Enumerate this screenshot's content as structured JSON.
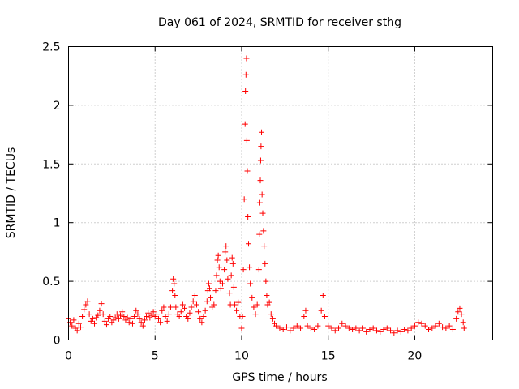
{
  "chart_data": {
    "type": "scatter",
    "title": "Day 061 of 2024, SRMTID for receiver sthg",
    "xlabel": "GPS time / hours",
    "ylabel": "SRMTID / TECUs",
    "xlim": [
      0,
      24.5
    ],
    "ylim": [
      0,
      2.5
    ],
    "grid": true,
    "marker": "+",
    "marker_color": "#ff0000",
    "x_ticks": [
      0,
      5,
      10,
      15,
      20
    ],
    "x_tick_labels": [
      "0",
      "5",
      "10",
      "15",
      "20"
    ],
    "y_ticks": [
      0,
      0.5,
      1,
      1.5,
      2,
      2.5
    ],
    "y_tick_labels": [
      "0",
      "0.5",
      "1",
      "1.5",
      "2",
      "2.5"
    ],
    "series": [
      {
        "name": "SRMTID",
        "points": [
          [
            0.0,
            0.18
          ],
          [
            0.1,
            0.15
          ],
          [
            0.2,
            0.12
          ],
          [
            0.3,
            0.17
          ],
          [
            0.4,
            0.1
          ],
          [
            0.5,
            0.08
          ],
          [
            0.6,
            0.14
          ],
          [
            0.7,
            0.11
          ],
          [
            0.8,
            0.2
          ],
          [
            0.9,
            0.26
          ],
          [
            1.0,
            0.3
          ],
          [
            1.1,
            0.33
          ],
          [
            1.2,
            0.22
          ],
          [
            1.3,
            0.16
          ],
          [
            1.4,
            0.18
          ],
          [
            1.5,
            0.14
          ],
          [
            1.6,
            0.19
          ],
          [
            1.7,
            0.21
          ],
          [
            1.8,
            0.25
          ],
          [
            1.9,
            0.31
          ],
          [
            2.0,
            0.22
          ],
          [
            2.1,
            0.16
          ],
          [
            2.2,
            0.13
          ],
          [
            2.3,
            0.18
          ],
          [
            2.4,
            0.2
          ],
          [
            2.5,
            0.15
          ],
          [
            2.6,
            0.17
          ],
          [
            2.7,
            0.19
          ],
          [
            2.8,
            0.22
          ],
          [
            2.9,
            0.18
          ],
          [
            3.0,
            0.21
          ],
          [
            3.1,
            0.24
          ],
          [
            3.2,
            0.2
          ],
          [
            3.3,
            0.17
          ],
          [
            3.4,
            0.19
          ],
          [
            3.5,
            0.15
          ],
          [
            3.6,
            0.18
          ],
          [
            3.7,
            0.14
          ],
          [
            3.8,
            0.2
          ],
          [
            3.9,
            0.25
          ],
          [
            4.0,
            0.22
          ],
          [
            4.1,
            0.18
          ],
          [
            4.2,
            0.15
          ],
          [
            4.3,
            0.12
          ],
          [
            4.4,
            0.17
          ],
          [
            4.5,
            0.2
          ],
          [
            4.6,
            0.23
          ],
          [
            4.7,
            0.19
          ],
          [
            4.8,
            0.21
          ],
          [
            4.9,
            0.24
          ],
          [
            5.0,
            0.2
          ],
          [
            5.1,
            0.22
          ],
          [
            5.2,
            0.18
          ],
          [
            5.3,
            0.15
          ],
          [
            5.4,
            0.25
          ],
          [
            5.5,
            0.28
          ],
          [
            5.6,
            0.2
          ],
          [
            5.7,
            0.16
          ],
          [
            5.8,
            0.22
          ],
          [
            5.9,
            0.28
          ],
          [
            6.0,
            0.42
          ],
          [
            6.05,
            0.52
          ],
          [
            6.1,
            0.48
          ],
          [
            6.15,
            0.38
          ],
          [
            6.2,
            0.28
          ],
          [
            6.3,
            0.22
          ],
          [
            6.4,
            0.2
          ],
          [
            6.5,
            0.24
          ],
          [
            6.6,
            0.3
          ],
          [
            6.7,
            0.27
          ],
          [
            6.8,
            0.2
          ],
          [
            6.9,
            0.18
          ],
          [
            7.0,
            0.23
          ],
          [
            7.1,
            0.28
          ],
          [
            7.2,
            0.33
          ],
          [
            7.3,
            0.38
          ],
          [
            7.4,
            0.3
          ],
          [
            7.5,
            0.24
          ],
          [
            7.6,
            0.18
          ],
          [
            7.7,
            0.15
          ],
          [
            7.8,
            0.2
          ],
          [
            7.9,
            0.25
          ],
          [
            8.0,
            0.33
          ],
          [
            8.05,
            0.42
          ],
          [
            8.1,
            0.48
          ],
          [
            8.15,
            0.44
          ],
          [
            8.2,
            0.36
          ],
          [
            8.3,
            0.28
          ],
          [
            8.4,
            0.3
          ],
          [
            8.5,
            0.42
          ],
          [
            8.55,
            0.55
          ],
          [
            8.6,
            0.68
          ],
          [
            8.65,
            0.72
          ],
          [
            8.7,
            0.62
          ],
          [
            8.75,
            0.5
          ],
          [
            8.8,
            0.44
          ],
          [
            8.9,
            0.48
          ],
          [
            9.0,
            0.6
          ],
          [
            9.05,
            0.75
          ],
          [
            9.1,
            0.8
          ],
          [
            9.15,
            0.68
          ],
          [
            9.2,
            0.52
          ],
          [
            9.3,
            0.4
          ],
          [
            9.35,
            0.3
          ],
          [
            9.4,
            0.55
          ],
          [
            9.45,
            0.7
          ],
          [
            9.5,
            0.65
          ],
          [
            9.55,
            0.45
          ],
          [
            9.6,
            0.3
          ],
          [
            9.7,
            0.25
          ],
          [
            9.8,
            0.32
          ],
          [
            9.9,
            0.2
          ],
          [
            10.0,
            0.1
          ],
          [
            10.05,
            0.2
          ],
          [
            10.1,
            0.6
          ],
          [
            10.15,
            1.2
          ],
          [
            10.2,
            1.84
          ],
          [
            10.22,
            2.12
          ],
          [
            10.25,
            2.26
          ],
          [
            10.28,
            2.4
          ],
          [
            10.3,
            1.7
          ],
          [
            10.33,
            1.44
          ],
          [
            10.36,
            1.05
          ],
          [
            10.4,
            0.82
          ],
          [
            10.45,
            0.62
          ],
          [
            10.5,
            0.48
          ],
          [
            10.6,
            0.36
          ],
          [
            10.7,
            0.28
          ],
          [
            10.8,
            0.22
          ],
          [
            10.9,
            0.3
          ],
          [
            11.0,
            0.6
          ],
          [
            11.02,
            0.9
          ],
          [
            11.05,
            1.17
          ],
          [
            11.08,
            1.36
          ],
          [
            11.1,
            1.53
          ],
          [
            11.12,
            1.65
          ],
          [
            11.15,
            1.77
          ],
          [
            11.18,
            1.24
          ],
          [
            11.22,
            1.08
          ],
          [
            11.26,
            0.93
          ],
          [
            11.3,
            0.8
          ],
          [
            11.35,
            0.65
          ],
          [
            11.4,
            0.5
          ],
          [
            11.45,
            0.38
          ],
          [
            11.5,
            0.3
          ],
          [
            11.6,
            0.32
          ],
          [
            11.7,
            0.22
          ],
          [
            11.8,
            0.18
          ],
          [
            11.9,
            0.14
          ],
          [
            12.0,
            0.12
          ],
          [
            12.2,
            0.1
          ],
          [
            12.4,
            0.09
          ],
          [
            12.6,
            0.11
          ],
          [
            12.8,
            0.08
          ],
          [
            13.0,
            0.1
          ],
          [
            13.2,
            0.12
          ],
          [
            13.4,
            0.1
          ],
          [
            13.6,
            0.2
          ],
          [
            13.7,
            0.25
          ],
          [
            13.8,
            0.12
          ],
          [
            14.0,
            0.1
          ],
          [
            14.2,
            0.09
          ],
          [
            14.4,
            0.12
          ],
          [
            14.6,
            0.25
          ],
          [
            14.7,
            0.38
          ],
          [
            14.8,
            0.2
          ],
          [
            15.0,
            0.12
          ],
          [
            15.2,
            0.1
          ],
          [
            15.4,
            0.08
          ],
          [
            15.6,
            0.1
          ],
          [
            15.8,
            0.14
          ],
          [
            16.0,
            0.12
          ],
          [
            16.2,
            0.1
          ],
          [
            16.4,
            0.09
          ],
          [
            16.6,
            0.1
          ],
          [
            16.8,
            0.08
          ],
          [
            17.0,
            0.1
          ],
          [
            17.2,
            0.07
          ],
          [
            17.4,
            0.09
          ],
          [
            17.6,
            0.1
          ],
          [
            17.8,
            0.08
          ],
          [
            18.0,
            0.07
          ],
          [
            18.2,
            0.09
          ],
          [
            18.4,
            0.1
          ],
          [
            18.6,
            0.08
          ],
          [
            18.8,
            0.06
          ],
          [
            19.0,
            0.08
          ],
          [
            19.2,
            0.07
          ],
          [
            19.4,
            0.09
          ],
          [
            19.6,
            0.08
          ],
          [
            19.8,
            0.1
          ],
          [
            20.0,
            0.12
          ],
          [
            20.2,
            0.15
          ],
          [
            20.4,
            0.14
          ],
          [
            20.6,
            0.12
          ],
          [
            20.8,
            0.09
          ],
          [
            21.0,
            0.1
          ],
          [
            21.2,
            0.12
          ],
          [
            21.4,
            0.14
          ],
          [
            21.6,
            0.11
          ],
          [
            21.8,
            0.1
          ],
          [
            22.0,
            0.12
          ],
          [
            22.2,
            0.09
          ],
          [
            22.4,
            0.18
          ],
          [
            22.5,
            0.24
          ],
          [
            22.6,
            0.27
          ],
          [
            22.7,
            0.22
          ],
          [
            22.8,
            0.15
          ],
          [
            22.85,
            0.1
          ]
        ]
      }
    ]
  }
}
